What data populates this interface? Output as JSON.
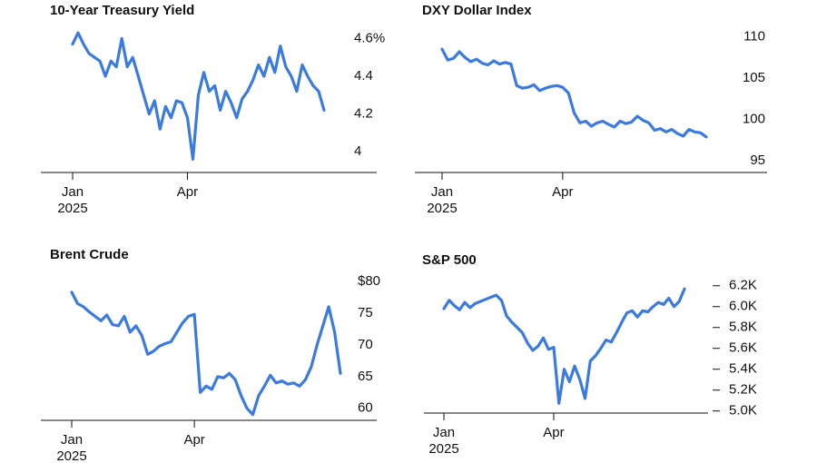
{
  "chart_data": [
    {
      "type": "line",
      "title": "10-Year Treasury Yield",
      "color": "#3b7be0",
      "categories": [
        "Jan\n2025",
        null,
        null,
        null,
        null,
        null,
        null,
        null,
        null,
        null,
        null,
        null,
        null,
        null,
        null,
        null,
        null,
        null,
        null,
        null,
        null,
        "Apr",
        null,
        null,
        null,
        null,
        null,
        null,
        null,
        null,
        null,
        null,
        null,
        null,
        null,
        null,
        null,
        null,
        null,
        null,
        null,
        null,
        null,
        null,
        null,
        null,
        null
      ],
      "values": [
        4.57,
        4.63,
        4.57,
        4.52,
        4.5,
        4.48,
        4.4,
        4.48,
        4.45,
        4.6,
        4.45,
        4.5,
        4.4,
        4.3,
        4.2,
        4.27,
        4.12,
        4.24,
        4.18,
        4.27,
        4.26,
        4.18,
        3.96,
        4.3,
        4.42,
        4.32,
        4.35,
        4.22,
        4.32,
        4.26,
        4.18,
        4.28,
        4.32,
        4.38,
        4.46,
        4.4,
        4.5,
        4.42,
        4.56,
        4.45,
        4.4,
        4.32,
        4.46,
        4.4,
        4.35,
        4.32,
        4.22
      ],
      "ylim": [
        3.89,
        4.65
      ],
      "yticks": [
        4.0,
        4.2,
        4.4,
        {
          "value": 4.6,
          "label": "4.6%"
        }
      ]
    },
    {
      "type": "line",
      "title": "DXY Dollar Index",
      "color": "#3b7be0",
      "categories": [
        "Jan\n2025",
        null,
        null,
        null,
        null,
        null,
        null,
        null,
        null,
        null,
        null,
        null,
        null,
        null,
        null,
        null,
        null,
        null,
        null,
        null,
        null,
        "Apr",
        null,
        null,
        null,
        null,
        null,
        null,
        null,
        null,
        null,
        null,
        null,
        null,
        null,
        null,
        null,
        null,
        null,
        null,
        null,
        null,
        null,
        null,
        null,
        null,
        null
      ],
      "values": [
        108.5,
        107.2,
        107.4,
        108.2,
        107.5,
        107.0,
        107.3,
        106.8,
        106.6,
        107.1,
        106.7,
        106.9,
        106.7,
        104.1,
        103.8,
        103.9,
        104.2,
        103.5,
        103.8,
        104.0,
        104.1,
        103.9,
        103.2,
        100.8,
        99.6,
        99.8,
        99.2,
        99.6,
        99.8,
        99.4,
        99.1,
        99.8,
        99.5,
        99.7,
        100.4,
        99.9,
        99.6,
        98.7,
        98.9,
        98.5,
        98.8,
        98.3,
        98.0,
        98.8,
        98.5,
        98.4,
        97.9
      ],
      "ylim": [
        93.6,
        110.5
      ],
      "yticks": [
        95,
        100,
        105,
        110
      ]
    },
    {
      "type": "line",
      "title": "Brent Crude",
      "color": "#3b7be0",
      "categories": [
        "Jan\n2025",
        null,
        null,
        null,
        null,
        null,
        null,
        null,
        null,
        null,
        null,
        null,
        null,
        null,
        null,
        null,
        null,
        null,
        null,
        null,
        null,
        "Apr",
        null,
        null,
        null,
        null,
        null,
        null,
        null,
        null,
        null,
        null,
        null,
        null,
        null,
        null,
        null,
        null,
        null,
        null,
        null,
        null,
        null,
        null,
        null,
        null,
        null
      ],
      "values": [
        78.3,
        76.5,
        76,
        75.2,
        74.5,
        73.8,
        74.7,
        73.2,
        73,
        74.5,
        72,
        73,
        71.5,
        68.5,
        69,
        69.8,
        70.2,
        70.5,
        72,
        73.5,
        74.5,
        74.8,
        62.5,
        63.5,
        63,
        65,
        64.8,
        65.5,
        64.5,
        62,
        60,
        59,
        62,
        63.5,
        65.2,
        64,
        64.3,
        63.8,
        64,
        63.5,
        64.5,
        66.5,
        70,
        73,
        76,
        72,
        65.5
      ],
      "ylim": [
        58.1,
        81
      ],
      "yticks": [
        60,
        65,
        70,
        75,
        {
          "value": 80,
          "label": "$80"
        }
      ]
    },
    {
      "type": "line",
      "title": "S&P 500",
      "color": "#3b7be0",
      "categories": [
        "Jan\n2025",
        null,
        null,
        null,
        null,
        null,
        null,
        null,
        null,
        null,
        null,
        null,
        null,
        null,
        null,
        null,
        null,
        null,
        null,
        null,
        null,
        "Apr",
        null,
        null,
        null,
        null,
        null,
        null,
        null,
        null,
        null,
        null,
        null,
        null,
        null,
        null,
        null,
        null,
        null,
        null,
        null,
        null,
        null,
        null,
        null,
        null,
        null
      ],
      "values": [
        5980,
        6060,
        6010,
        5970,
        6040,
        5990,
        6030,
        6050,
        6070,
        6090,
        6110,
        6060,
        5910,
        5850,
        5800,
        5750,
        5650,
        5580,
        5620,
        5700,
        5590,
        5610,
        5074,
        5400,
        5280,
        5430,
        5300,
        5120,
        5480,
        5530,
        5600,
        5680,
        5660,
        5750,
        5850,
        5940,
        5960,
        5900,
        5960,
        5950,
        6000,
        6040,
        6020,
        6080,
        6000,
        6050,
        6170
      ],
      "ylim": [
        4980,
        6250
      ],
      "yticks": [
        {
          "value": 5000,
          "label": "5.0K"
        },
        {
          "value": 5200,
          "label": "5.2K"
        },
        {
          "value": 5400,
          "label": "5.4K"
        },
        {
          "value": 5600,
          "label": "5.6K"
        },
        {
          "value": 5800,
          "label": "5.8K"
        },
        {
          "value": 6000,
          "label": "6.0K"
        },
        {
          "value": 6200,
          "label": "6.2K"
        }
      ]
    }
  ]
}
